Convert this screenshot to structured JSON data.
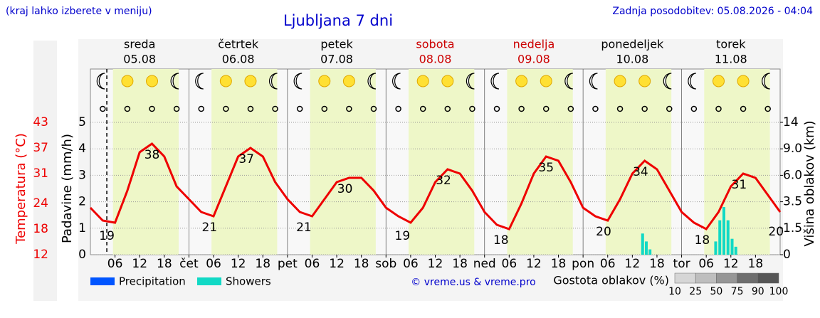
{
  "header": {
    "hint": "(kraj lahko izberete v meniju)",
    "title": "Ljubljana 7 dni",
    "updated": "Zadnja posodobitev: 05.08.2026 - 04:04",
    "credit": "© vreme.us & vreme.pro"
  },
  "chart_data": {
    "type": "line",
    "days": [
      {
        "name": "sreda",
        "date": "05.08",
        "color": "#000000"
      },
      {
        "name": "četrtek",
        "date": "06.08",
        "color": "#000000"
      },
      {
        "name": "petek",
        "date": "07.08",
        "color": "#000000"
      },
      {
        "name": "sobota",
        "date": "08.08",
        "color": "#cc0000"
      },
      {
        "name": "nedelja",
        "date": "09.08",
        "color": "#cc0000"
      },
      {
        "name": "ponedeljek",
        "date": "10.08",
        "color": "#000000"
      },
      {
        "name": "torek",
        "date": "11.08",
        "color": "#000000"
      }
    ],
    "xlim": [
      0,
      168
    ],
    "xticks": [
      {
        "value": 6,
        "label": "06"
      },
      12,
      18,
      {
        "value": 24,
        "label": "čet"
      },
      {
        "value": 30,
        "label": "06"
      },
      {
        "value": 36,
        "label": "12"
      },
      {
        "value": 42,
        "label": "18"
      },
      {
        "value": 48,
        "label": "pet"
      },
      {
        "value": 54,
        "label": "06"
      },
      {
        "value": 60,
        "label": "12"
      },
      {
        "value": 66,
        "label": "18"
      },
      {
        "value": 72,
        "label": "sob"
      },
      {
        "value": 78,
        "label": "06"
      },
      {
        "value": 84,
        "label": "12"
      },
      {
        "value": 90,
        "label": "18"
      },
      {
        "value": 96,
        "label": "ned"
      },
      {
        "value": 102,
        "label": "06"
      },
      {
        "value": 108,
        "label": "12"
      },
      {
        "value": 114,
        "label": "18"
      },
      {
        "value": 120,
        "label": "pon"
      },
      {
        "value": 126,
        "label": "06"
      },
      {
        "value": 132,
        "label": "12"
      },
      {
        "value": 138,
        "label": "18"
      },
      {
        "value": 144,
        "label": "tor"
      },
      {
        "value": 150,
        "label": "06"
      },
      {
        "value": 156,
        "label": "12"
      },
      {
        "value": 162,
        "label": "18"
      }
    ],
    "ylabel": "Padavine (mm/h)",
    "ylim": [
      0,
      5
    ],
    "yticks": [
      0,
      1,
      2,
      3,
      4,
      5
    ],
    "tlabel": "Temperatura (°C)",
    "tlim": [
      12,
      43
    ],
    "tticks": [
      12,
      18,
      24,
      31,
      37,
      43
    ],
    "y2label": "Višina oblakov (km)",
    "y2ticks": [
      0,
      1.5,
      3.5,
      {
        "value": 6,
        "label": "6.0"
      },
      {
        "value": 9,
        "label": "9.0"
      },
      14
    ],
    "temperature": {
      "color": "#ee0000",
      "x": [
        0,
        3,
        6,
        9,
        12,
        15,
        18,
        21,
        24,
        27,
        30,
        33,
        36,
        39,
        42,
        45,
        48,
        51,
        54,
        57,
        60,
        63,
        66,
        69,
        72,
        75,
        78,
        81,
        84,
        87,
        90,
        93,
        96,
        99,
        102,
        105,
        108,
        111,
        114,
        117,
        120,
        123,
        126,
        129,
        132,
        135,
        138,
        141,
        144,
        147,
        150,
        153,
        156,
        159,
        162,
        165,
        168
      ],
      "values": [
        23,
        20,
        19.5,
        27,
        36,
        38,
        35,
        28,
        25,
        22,
        21,
        28,
        35,
        37,
        35,
        29,
        25,
        22,
        21,
        25,
        29,
        30,
        30,
        27,
        23,
        21,
        19.5,
        23,
        29,
        32,
        31,
        27,
        22,
        19,
        18,
        24,
        31,
        35,
        34,
        29,
        23,
        21,
        20,
        25,
        31,
        34,
        32,
        27,
        22,
        19.5,
        18,
        22,
        28,
        31,
        30,
        26,
        22
      ]
    },
    "extremes": {
      "x": [
        4,
        15,
        29,
        38,
        52,
        62,
        76,
        86,
        100,
        111,
        125,
        134,
        149,
        158,
        167
      ],
      "values": [
        19,
        38,
        21,
        37,
        21,
        30,
        19,
        32,
        18,
        35,
        20,
        34,
        18,
        31,
        20
      ]
    },
    "series": [
      {
        "name": "Precipitation",
        "color": "#0055ff",
        "x": [],
        "values": []
      },
      {
        "name": "Showers",
        "color": "#11d9c5",
        "x": [
          134.5,
          135.4,
          136.3,
          152.3,
          153.3,
          154.3,
          155.3,
          156.3,
          157.2
        ],
        "values": [
          0.8,
          0.5,
          0.2,
          0.5,
          1.3,
          1.8,
          1.3,
          0.6,
          0.3
        ]
      }
    ],
    "cloud_legend": {
      "title": "Gostota oblakov (%)",
      "levels": [
        10,
        25,
        50,
        75,
        90,
        100
      ]
    }
  }
}
